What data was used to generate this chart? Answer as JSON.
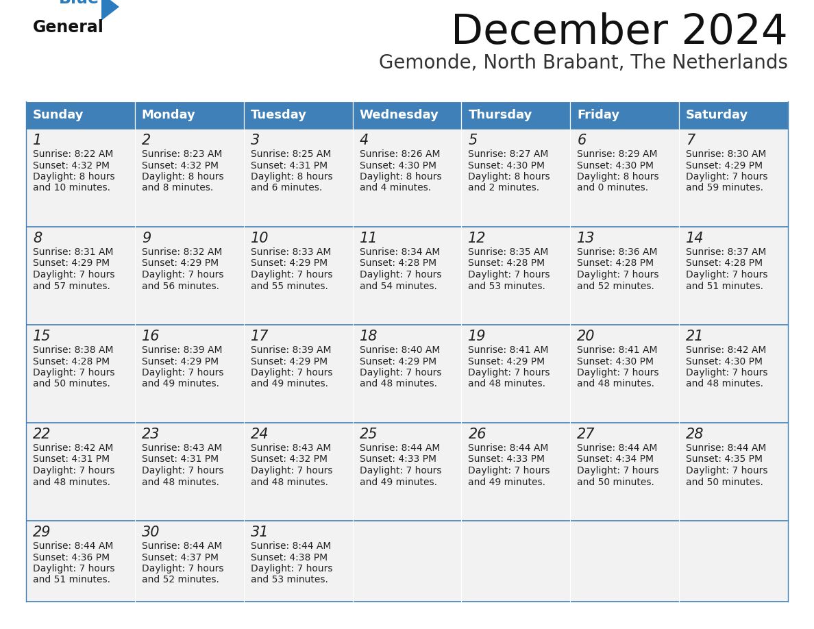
{
  "title": "December 2024",
  "subtitle": "Gemonde, North Brabant, The Netherlands",
  "days_of_week": [
    "Sunday",
    "Monday",
    "Tuesday",
    "Wednesday",
    "Thursday",
    "Friday",
    "Saturday"
  ],
  "header_bg": "#4080b8",
  "header_text": "#ffffff",
  "cell_bg": "#f2f2f2",
  "cell_bg_last": "#f2f2f2",
  "border_color": "#4080b8",
  "row_sep_color": "#4080b8",
  "day_num_color": "#222222",
  "text_color": "#222222",
  "title_color": "#111111",
  "subtitle_color": "#333333",
  "logo_general_color": "#111111",
  "logo_blue_color": "#2b7bbf",
  "weeks": [
    [
      {
        "day": 1,
        "sunrise": "8:22 AM",
        "sunset": "4:32 PM",
        "daylight": "8 hours and 10 minutes."
      },
      {
        "day": 2,
        "sunrise": "8:23 AM",
        "sunset": "4:32 PM",
        "daylight": "8 hours and 8 minutes."
      },
      {
        "day": 3,
        "sunrise": "8:25 AM",
        "sunset": "4:31 PM",
        "daylight": "8 hours and 6 minutes."
      },
      {
        "day": 4,
        "sunrise": "8:26 AM",
        "sunset": "4:30 PM",
        "daylight": "8 hours and 4 minutes."
      },
      {
        "day": 5,
        "sunrise": "8:27 AM",
        "sunset": "4:30 PM",
        "daylight": "8 hours and 2 minutes."
      },
      {
        "day": 6,
        "sunrise": "8:29 AM",
        "sunset": "4:30 PM",
        "daylight": "8 hours and 0 minutes."
      },
      {
        "day": 7,
        "sunrise": "8:30 AM",
        "sunset": "4:29 PM",
        "daylight": "7 hours and 59 minutes."
      }
    ],
    [
      {
        "day": 8,
        "sunrise": "8:31 AM",
        "sunset": "4:29 PM",
        "daylight": "7 hours and 57 minutes."
      },
      {
        "day": 9,
        "sunrise": "8:32 AM",
        "sunset": "4:29 PM",
        "daylight": "7 hours and 56 minutes."
      },
      {
        "day": 10,
        "sunrise": "8:33 AM",
        "sunset": "4:29 PM",
        "daylight": "7 hours and 55 minutes."
      },
      {
        "day": 11,
        "sunrise": "8:34 AM",
        "sunset": "4:28 PM",
        "daylight": "7 hours and 54 minutes."
      },
      {
        "day": 12,
        "sunrise": "8:35 AM",
        "sunset": "4:28 PM",
        "daylight": "7 hours and 53 minutes."
      },
      {
        "day": 13,
        "sunrise": "8:36 AM",
        "sunset": "4:28 PM",
        "daylight": "7 hours and 52 minutes."
      },
      {
        "day": 14,
        "sunrise": "8:37 AM",
        "sunset": "4:28 PM",
        "daylight": "7 hours and 51 minutes."
      }
    ],
    [
      {
        "day": 15,
        "sunrise": "8:38 AM",
        "sunset": "4:28 PM",
        "daylight": "7 hours and 50 minutes."
      },
      {
        "day": 16,
        "sunrise": "8:39 AM",
        "sunset": "4:29 PM",
        "daylight": "7 hours and 49 minutes."
      },
      {
        "day": 17,
        "sunrise": "8:39 AM",
        "sunset": "4:29 PM",
        "daylight": "7 hours and 49 minutes."
      },
      {
        "day": 18,
        "sunrise": "8:40 AM",
        "sunset": "4:29 PM",
        "daylight": "7 hours and 48 minutes."
      },
      {
        "day": 19,
        "sunrise": "8:41 AM",
        "sunset": "4:29 PM",
        "daylight": "7 hours and 48 minutes."
      },
      {
        "day": 20,
        "sunrise": "8:41 AM",
        "sunset": "4:30 PM",
        "daylight": "7 hours and 48 minutes."
      },
      {
        "day": 21,
        "sunrise": "8:42 AM",
        "sunset": "4:30 PM",
        "daylight": "7 hours and 48 minutes."
      }
    ],
    [
      {
        "day": 22,
        "sunrise": "8:42 AM",
        "sunset": "4:31 PM",
        "daylight": "7 hours and 48 minutes."
      },
      {
        "day": 23,
        "sunrise": "8:43 AM",
        "sunset": "4:31 PM",
        "daylight": "7 hours and 48 minutes."
      },
      {
        "day": 24,
        "sunrise": "8:43 AM",
        "sunset": "4:32 PM",
        "daylight": "7 hours and 48 minutes."
      },
      {
        "day": 25,
        "sunrise": "8:44 AM",
        "sunset": "4:33 PM",
        "daylight": "7 hours and 49 minutes."
      },
      {
        "day": 26,
        "sunrise": "8:44 AM",
        "sunset": "4:33 PM",
        "daylight": "7 hours and 49 minutes."
      },
      {
        "day": 27,
        "sunrise": "8:44 AM",
        "sunset": "4:34 PM",
        "daylight": "7 hours and 50 minutes."
      },
      {
        "day": 28,
        "sunrise": "8:44 AM",
        "sunset": "4:35 PM",
        "daylight": "7 hours and 50 minutes."
      }
    ],
    [
      {
        "day": 29,
        "sunrise": "8:44 AM",
        "sunset": "4:36 PM",
        "daylight": "7 hours and 51 minutes."
      },
      {
        "day": 30,
        "sunrise": "8:44 AM",
        "sunset": "4:37 PM",
        "daylight": "7 hours and 52 minutes."
      },
      {
        "day": 31,
        "sunrise": "8:44 AM",
        "sunset": "4:38 PM",
        "daylight": "7 hours and 53 minutes."
      },
      null,
      null,
      null,
      null
    ]
  ],
  "fig_width": 11.88,
  "fig_height": 9.18,
  "dpi": 100
}
